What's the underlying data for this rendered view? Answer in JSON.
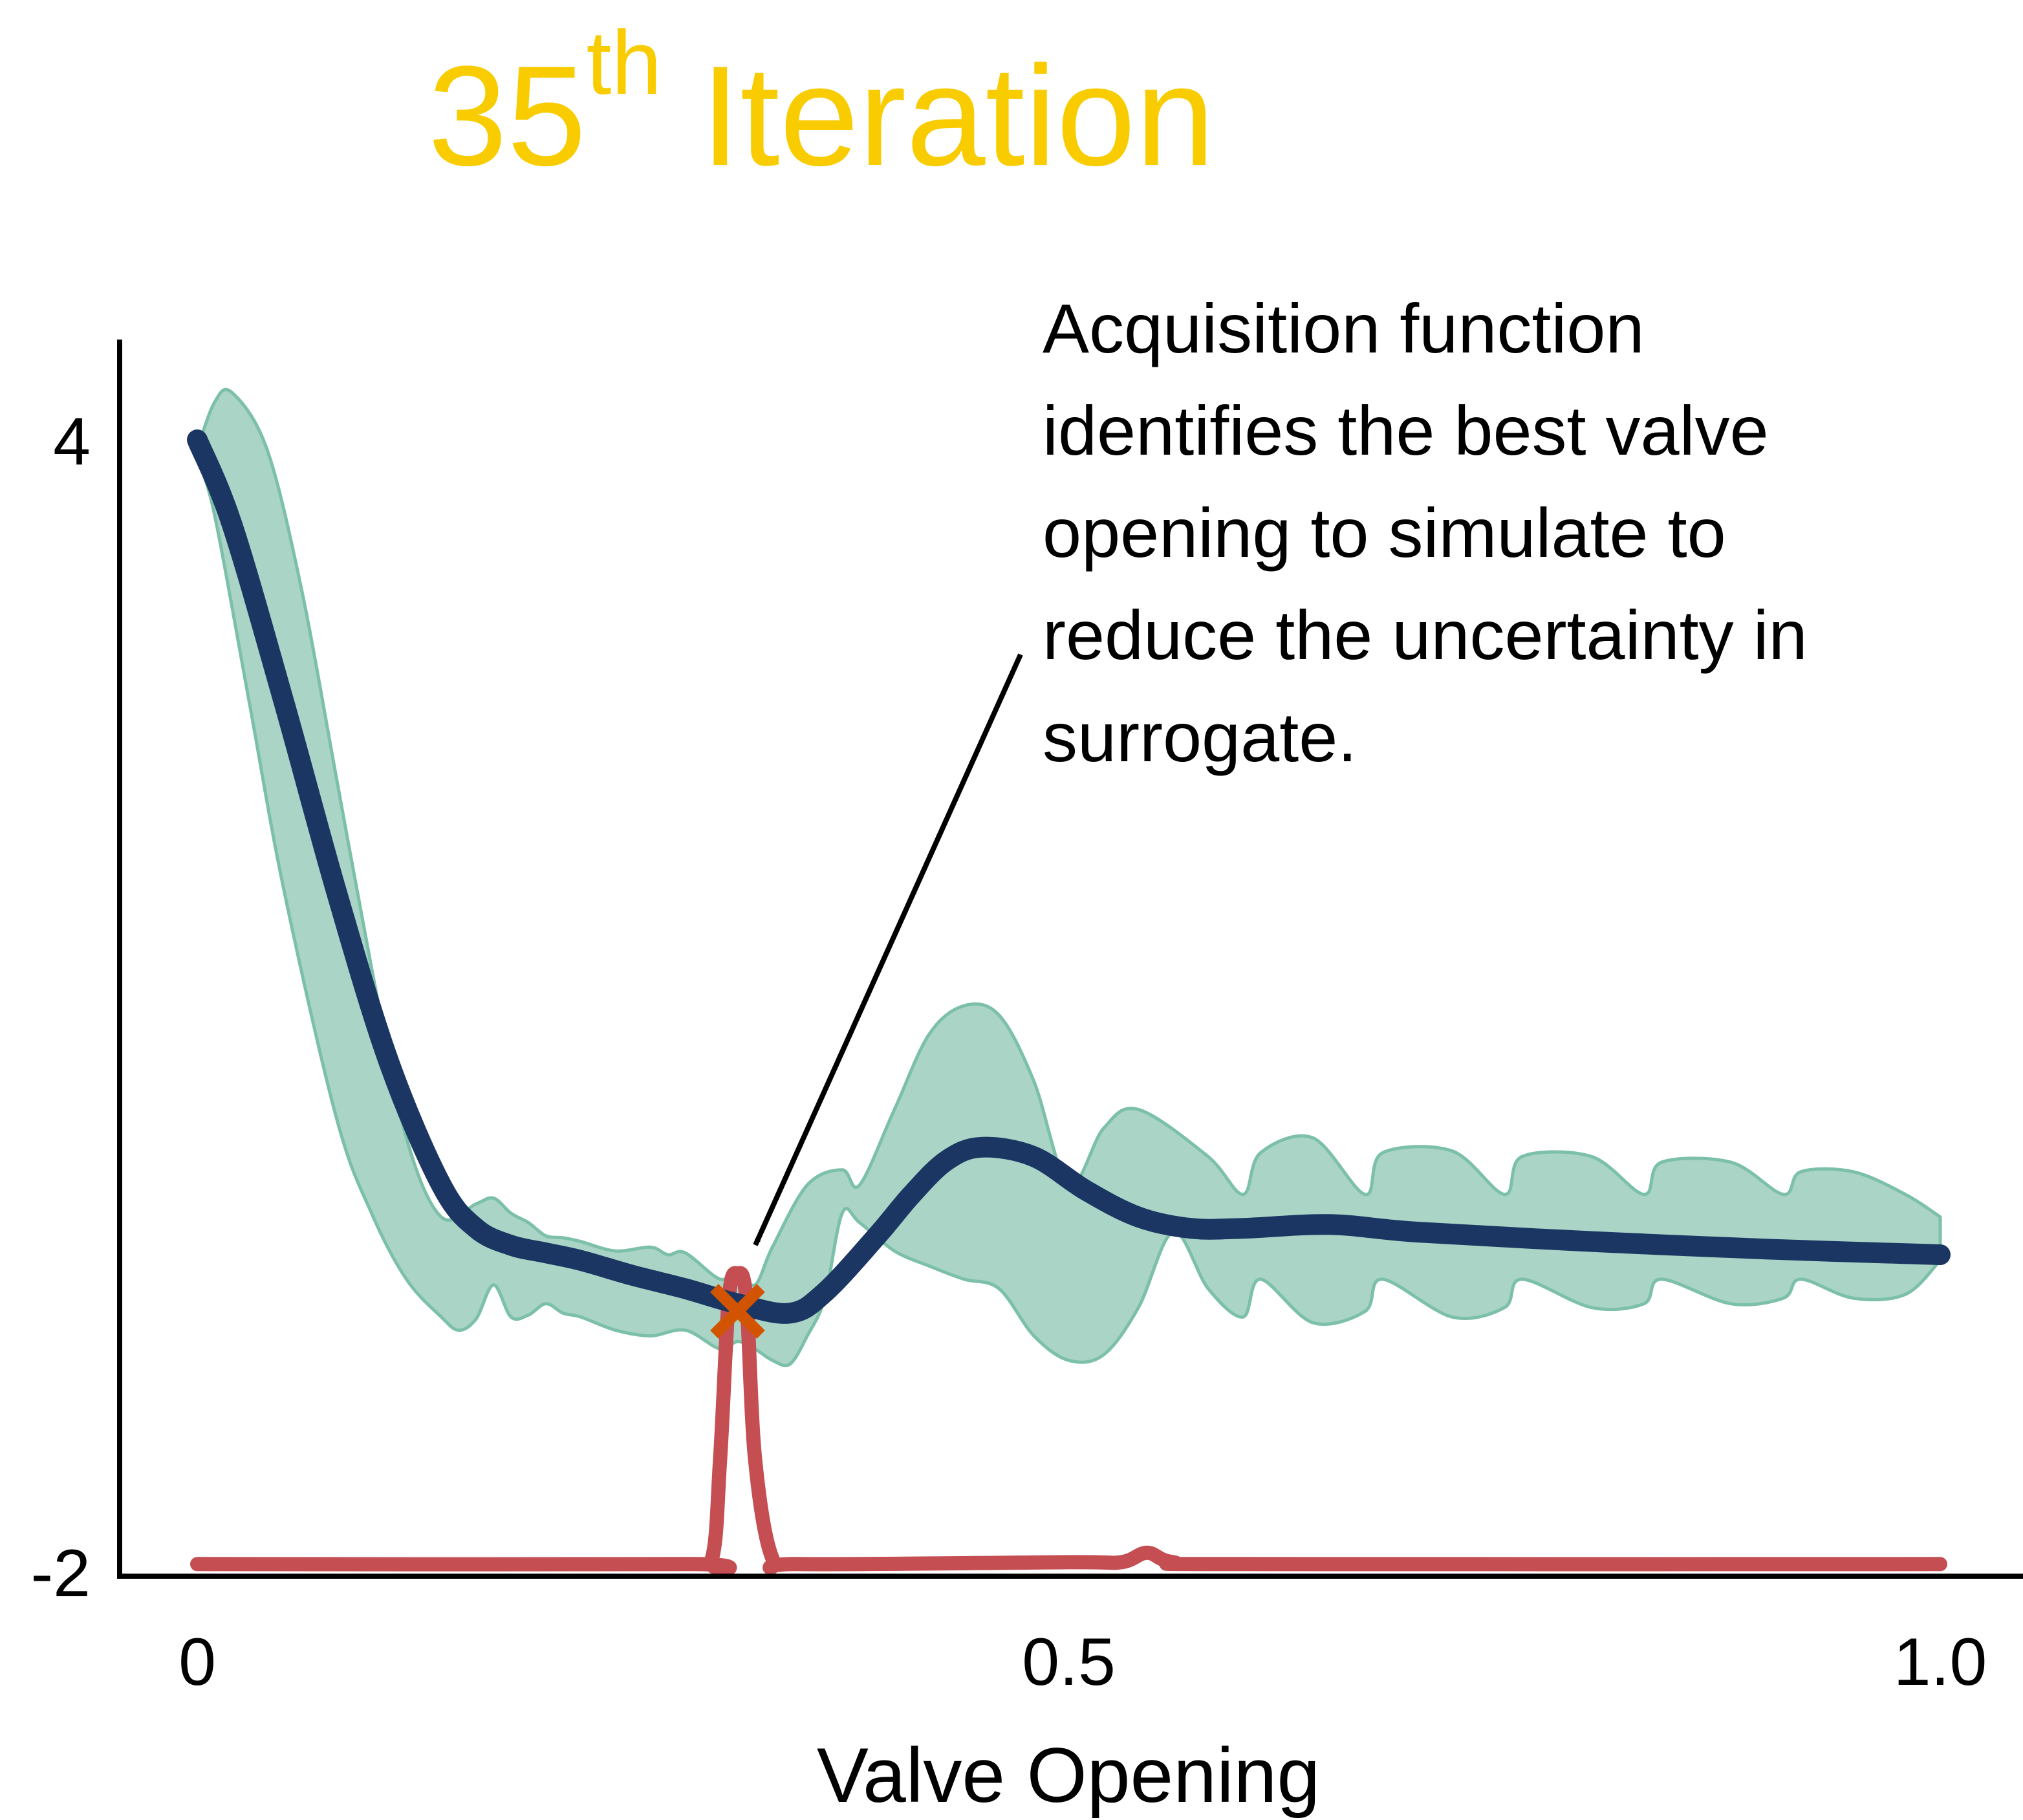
{
  "chart_data": {
    "type": "line",
    "title": {
      "number": "35",
      "superscript": "th",
      "text": "Iteration",
      "color": "#F9CC00"
    },
    "xlabel": "Valve Opening",
    "ylabel": "",
    "xlim": [
      0,
      1.0
    ],
    "ylim": [
      -2,
      4.6
    ],
    "xticks": [
      {
        "value": 0,
        "label": "0"
      },
      {
        "value": 0.5,
        "label": "0.5"
      },
      {
        "value": 1.0,
        "label": "1.0"
      }
    ],
    "yticks": [
      {
        "value": 4,
        "label": "4"
      },
      {
        "value": -2,
        "label": "-2"
      }
    ],
    "grid": false,
    "colors": {
      "mean": "#1B3663",
      "band_fill": "#A9D4C6",
      "band_edge": "#7CC0A8",
      "acquisition": "#C44E52",
      "selected_marker": "#D35400"
    },
    "series": [
      {
        "role": "surrogate-mean",
        "x": [
          0,
          0.02,
          0.05,
          0.08,
          0.11,
          0.14,
          0.16,
          0.18,
          0.2,
          0.22,
          0.25,
          0.28,
          0.31,
          0.34,
          0.36,
          0.39,
          0.41,
          0.43,
          0.45,
          0.48,
          0.51,
          0.54,
          0.57,
          0.6,
          0.65,
          0.7,
          0.8,
          0.9,
          1.0
        ],
        "y": [
          4.0,
          3.55,
          2.6,
          1.6,
          0.7,
          0.05,
          -0.18,
          -0.27,
          -0.31,
          -0.35,
          -0.43,
          -0.5,
          -0.58,
          -0.63,
          -0.52,
          -0.22,
          0.0,
          0.18,
          0.25,
          0.2,
          0.02,
          -0.12,
          -0.18,
          -0.18,
          -0.16,
          -0.2,
          -0.25,
          -0.29,
          -0.32
        ]
      },
      {
        "role": "uncertainty-band-upper",
        "x": [
          0,
          0.01,
          0.02,
          0.04,
          0.06,
          0.08,
          0.1,
          0.12,
          0.14,
          0.16,
          0.17,
          0.18,
          0.19,
          0.2,
          0.21,
          0.22,
          0.24,
          0.26,
          0.27,
          0.28,
          0.3,
          0.31,
          0.32,
          0.33,
          0.35,
          0.37,
          0.38,
          0.4,
          0.42,
          0.44,
          0.46,
          0.48,
          0.5,
          0.52,
          0.54,
          0.58,
          0.6,
          0.61,
          0.64,
          0.67,
          0.68,
          0.72,
          0.75,
          0.76,
          0.8,
          0.83,
          0.84,
          0.88,
          0.91,
          0.92,
          0.95,
          0.98,
          1.0
        ],
        "y": [
          3.95,
          4.2,
          4.25,
          3.95,
          3.2,
          2.2,
          1.2,
          0.3,
          -0.12,
          -0.05,
          -0.02,
          -0.1,
          -0.15,
          -0.22,
          -0.23,
          -0.25,
          -0.3,
          -0.28,
          -0.32,
          -0.31,
          -0.45,
          -0.4,
          -0.48,
          -0.28,
          0.05,
          0.13,
          0.05,
          0.45,
          0.85,
          1.0,
          0.95,
          0.6,
          0.05,
          0.35,
          0.45,
          0.2,
          0.0,
          0.22,
          0.3,
          0.0,
          0.22,
          0.23,
          0.0,
          0.2,
          0.2,
          0.0,
          0.17,
          0.17,
          0.0,
          0.12,
          0.12,
          0.0,
          -0.12
        ]
      },
      {
        "role": "uncertainty-band-lower",
        "x": [
          0,
          0.01,
          0.03,
          0.05,
          0.08,
          0.1,
          0.12,
          0.14,
          0.15,
          0.16,
          0.17,
          0.18,
          0.19,
          0.2,
          0.21,
          0.22,
          0.24,
          0.26,
          0.28,
          0.3,
          0.31,
          0.32,
          0.33,
          0.34,
          0.35,
          0.36,
          0.37,
          0.38,
          0.4,
          0.42,
          0.44,
          0.46,
          0.48,
          0.5,
          0.52,
          0.54,
          0.56,
          0.58,
          0.6,
          0.61,
          0.64,
          0.67,
          0.68,
          0.72,
          0.75,
          0.76,
          0.8,
          0.83,
          0.84,
          0.88,
          0.91,
          0.92,
          0.95,
          0.98,
          1.0
        ],
        "y": [
          3.9,
          3.6,
          2.6,
          1.6,
          0.4,
          -0.1,
          -0.45,
          -0.65,
          -0.72,
          -0.66,
          -0.48,
          -0.65,
          -0.64,
          -0.58,
          -0.63,
          -0.65,
          -0.72,
          -0.75,
          -0.72,
          -0.82,
          -0.78,
          -0.82,
          -0.88,
          -0.9,
          -0.75,
          -0.55,
          -0.1,
          -0.15,
          -0.3,
          -0.38,
          -0.45,
          -0.5,
          -0.75,
          -0.88,
          -0.85,
          -0.6,
          -0.2,
          -0.5,
          -0.65,
          -0.45,
          -0.68,
          -0.62,
          -0.45,
          -0.65,
          -0.6,
          -0.45,
          -0.6,
          -0.58,
          -0.45,
          -0.58,
          -0.55,
          -0.45,
          -0.55,
          -0.53,
          -0.35
        ]
      },
      {
        "role": "acquisition-function",
        "x": [
          0,
          0.28,
          0.295,
          0.3,
          0.305,
          0.31,
          0.315,
          0.32,
          0.33,
          0.345,
          0.5,
          0.53,
          0.545,
          0.56,
          0.6,
          1.0
        ],
        "y": [
          -1.96,
          -1.96,
          -1.94,
          -1.4,
          -0.55,
          -0.42,
          -0.55,
          -1.4,
          -1.93,
          -1.96,
          -1.95,
          -1.95,
          -1.9,
          -1.95,
          -1.96,
          -1.96
        ]
      }
    ],
    "selected_point": {
      "x": 0.31,
      "y": -0.62
    },
    "annotation": {
      "lines": [
        "Acquisition function",
        "identifies the best valve",
        "opening to simulate to",
        "reduce the uncertainty in",
        "surrogate."
      ]
    }
  }
}
